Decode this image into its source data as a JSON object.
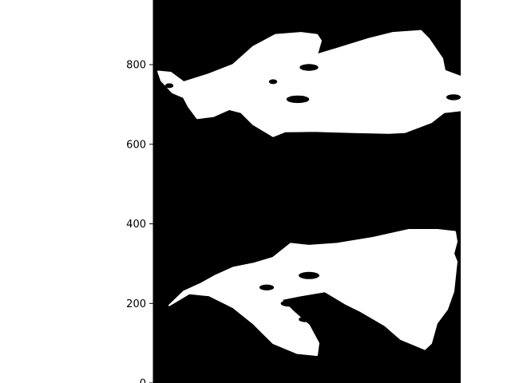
{
  "chart_data": {
    "type": "heatmap",
    "title": "",
    "xlabel": "",
    "ylabel": "",
    "colormap": "gray",
    "colors": {
      "background": "#000000",
      "mask": "#ffffff",
      "axis": "#000000"
    },
    "x_range": [
      0,
      385
    ],
    "ylim": [
      0,
      975
    ],
    "y_ticks": [
      {
        "value": 0,
        "label": "0"
      },
      {
        "value": 200,
        "label": "200"
      },
      {
        "value": 400,
        "label": "400"
      },
      {
        "value": 600,
        "label": "600"
      },
      {
        "value": 800,
        "label": "800"
      }
    ],
    "grid": false,
    "legend": "none",
    "regions": [
      {
        "name": "upper-region",
        "outline": [
          [
            6,
            783
          ],
          [
            22,
            780
          ],
          [
            38,
            756
          ],
          [
            68,
            775
          ],
          [
            100,
            800
          ],
          [
            125,
            845
          ],
          [
            153,
            875
          ],
          [
            185,
            880
          ],
          [
            205,
            875
          ],
          [
            210,
            860
          ],
          [
            205,
            825
          ],
          [
            230,
            840
          ],
          [
            270,
            865
          ],
          [
            300,
            880
          ],
          [
            335,
            885
          ],
          [
            345,
            865
          ],
          [
            362,
            815
          ],
          [
            365,
            785
          ],
          [
            385,
            770
          ],
          [
            385,
            685
          ],
          [
            364,
            680
          ],
          [
            348,
            655
          ],
          [
            315,
            630
          ],
          [
            295,
            628
          ],
          [
            250,
            630
          ],
          [
            200,
            633
          ],
          [
            165,
            632
          ],
          [
            150,
            620
          ],
          [
            125,
            650
          ],
          [
            110,
            680
          ],
          [
            95,
            688
          ],
          [
            75,
            670
          ],
          [
            55,
            665
          ],
          [
            44,
            695
          ],
          [
            38,
            718
          ],
          [
            24,
            730
          ],
          [
            10,
            760
          ]
        ]
      },
      {
        "name": "lower-region",
        "outline": [
          [
            20,
            195
          ],
          [
            38,
            230
          ],
          [
            60,
            250
          ],
          [
            78,
            270
          ],
          [
            100,
            290
          ],
          [
            125,
            300
          ],
          [
            150,
            315
          ],
          [
            172,
            350
          ],
          [
            195,
            345
          ],
          [
            230,
            350
          ],
          [
            275,
            365
          ],
          [
            320,
            385
          ],
          [
            356,
            385
          ],
          [
            378,
            380
          ],
          [
            380,
            355
          ],
          [
            376,
            325
          ],
          [
            380,
            305
          ],
          [
            376,
            230
          ],
          [
            368,
            185
          ],
          [
            355,
            150
          ],
          [
            348,
            100
          ],
          [
            340,
            85
          ],
          [
            310,
            110
          ],
          [
            290,
            145
          ],
          [
            260,
            180
          ],
          [
            240,
            200
          ],
          [
            215,
            230
          ],
          [
            185,
            220
          ],
          [
            160,
            210
          ],
          [
            175,
            180
          ],
          [
            195,
            145
          ],
          [
            207,
            100
          ],
          [
            205,
            70
          ],
          [
            180,
            75
          ],
          [
            150,
            100
          ],
          [
            125,
            150
          ],
          [
            100,
            190
          ],
          [
            70,
            220
          ],
          [
            45,
            225
          ]
        ]
      }
    ],
    "holes": [
      {
        "name": "hole-upper-dot-left",
        "x": 20,
        "y": 747,
        "size": 4
      },
      {
        "name": "hole-upper-dot-mid",
        "x": 150,
        "y": 757,
        "size": 4
      },
      {
        "name": "hole-upper-blob-center",
        "x": 181,
        "y": 713,
        "size": 11
      },
      {
        "name": "hole-upper-blob-top",
        "x": 195,
        "y": 793,
        "size": 9
      },
      {
        "name": "hole-upper-blob-right",
        "x": 376,
        "y": 718,
        "size": 7
      },
      {
        "name": "hole-lower-blob-center",
        "x": 195,
        "y": 270,
        "size": 10
      },
      {
        "name": "hole-lower-streak-a",
        "x": 142,
        "y": 240,
        "size": 7
      },
      {
        "name": "hole-lower-streak-b",
        "x": 170,
        "y": 200,
        "size": 8
      },
      {
        "name": "hole-lower-streak-c",
        "x": 190,
        "y": 160,
        "size": 6
      }
    ]
  }
}
